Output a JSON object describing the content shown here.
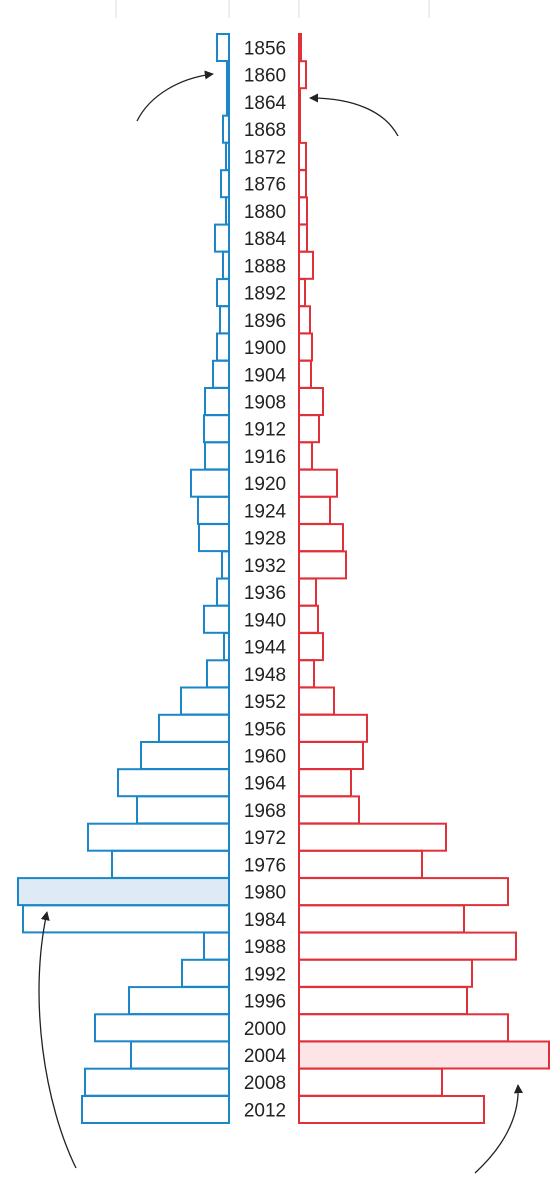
{
  "chart_data": {
    "type": "bar",
    "orientation": "diverging-horizontal",
    "title": "",
    "xlabel": "",
    "ylabel": "",
    "categories": [
      "1856",
      "1860",
      "1864",
      "1868",
      "1872",
      "1876",
      "1880",
      "1884",
      "1888",
      "1892",
      "1896",
      "1900",
      "1904",
      "1908",
      "1912",
      "1916",
      "1920",
      "1924",
      "1928",
      "1932",
      "1936",
      "1940",
      "1944",
      "1948",
      "1952",
      "1956",
      "1960",
      "1964",
      "1968",
      "1972",
      "1976",
      "1980",
      "1984",
      "1988",
      "1992",
      "1996",
      "2000",
      "2004",
      "2008",
      "2012"
    ],
    "series": [
      {
        "side": "left",
        "color": "#1b87c9",
        "values": [
          12,
          2,
          2,
          6,
          3,
          8,
          3,
          14,
          6,
          12,
          9,
          12,
          16,
          24,
          25,
          24,
          38,
          31,
          30,
          7,
          12,
          25,
          5,
          22,
          48,
          70,
          88,
          111,
          92,
          141,
          117,
          211,
          206,
          25,
          47,
          100,
          134,
          98,
          144,
          147
        ],
        "highlight": "1980",
        "highlight_fill": "#deebf7"
      },
      {
        "side": "right",
        "color": "#e0313b",
        "values": [
          2,
          7,
          1,
          1,
          7,
          7,
          8,
          8,
          14,
          6,
          11,
          13,
          12,
          24,
          20,
          13,
          38,
          31,
          44,
          47,
          17,
          19,
          24,
          15,
          35,
          68,
          64,
          52,
          60,
          147,
          123,
          209,
          165,
          217,
          173,
          168,
          209,
          250,
          143,
          185
        ],
        "highlight": "2004",
        "highlight_fill": "#fde5e7"
      }
    ],
    "annotations": [
      {
        "style": "arrow",
        "points_to_category": "1860",
        "side": "left",
        "from": "lower-left"
      },
      {
        "style": "arrow",
        "points_to_category": "1864",
        "side": "right",
        "from": "lower-right"
      },
      {
        "style": "arrow",
        "points_to_category": "1984",
        "side": "left",
        "from": "below"
      },
      {
        "style": "arrow",
        "points_to_category": "2008",
        "side": "right",
        "from": "below"
      }
    ],
    "grid": true,
    "legend": "none"
  }
}
